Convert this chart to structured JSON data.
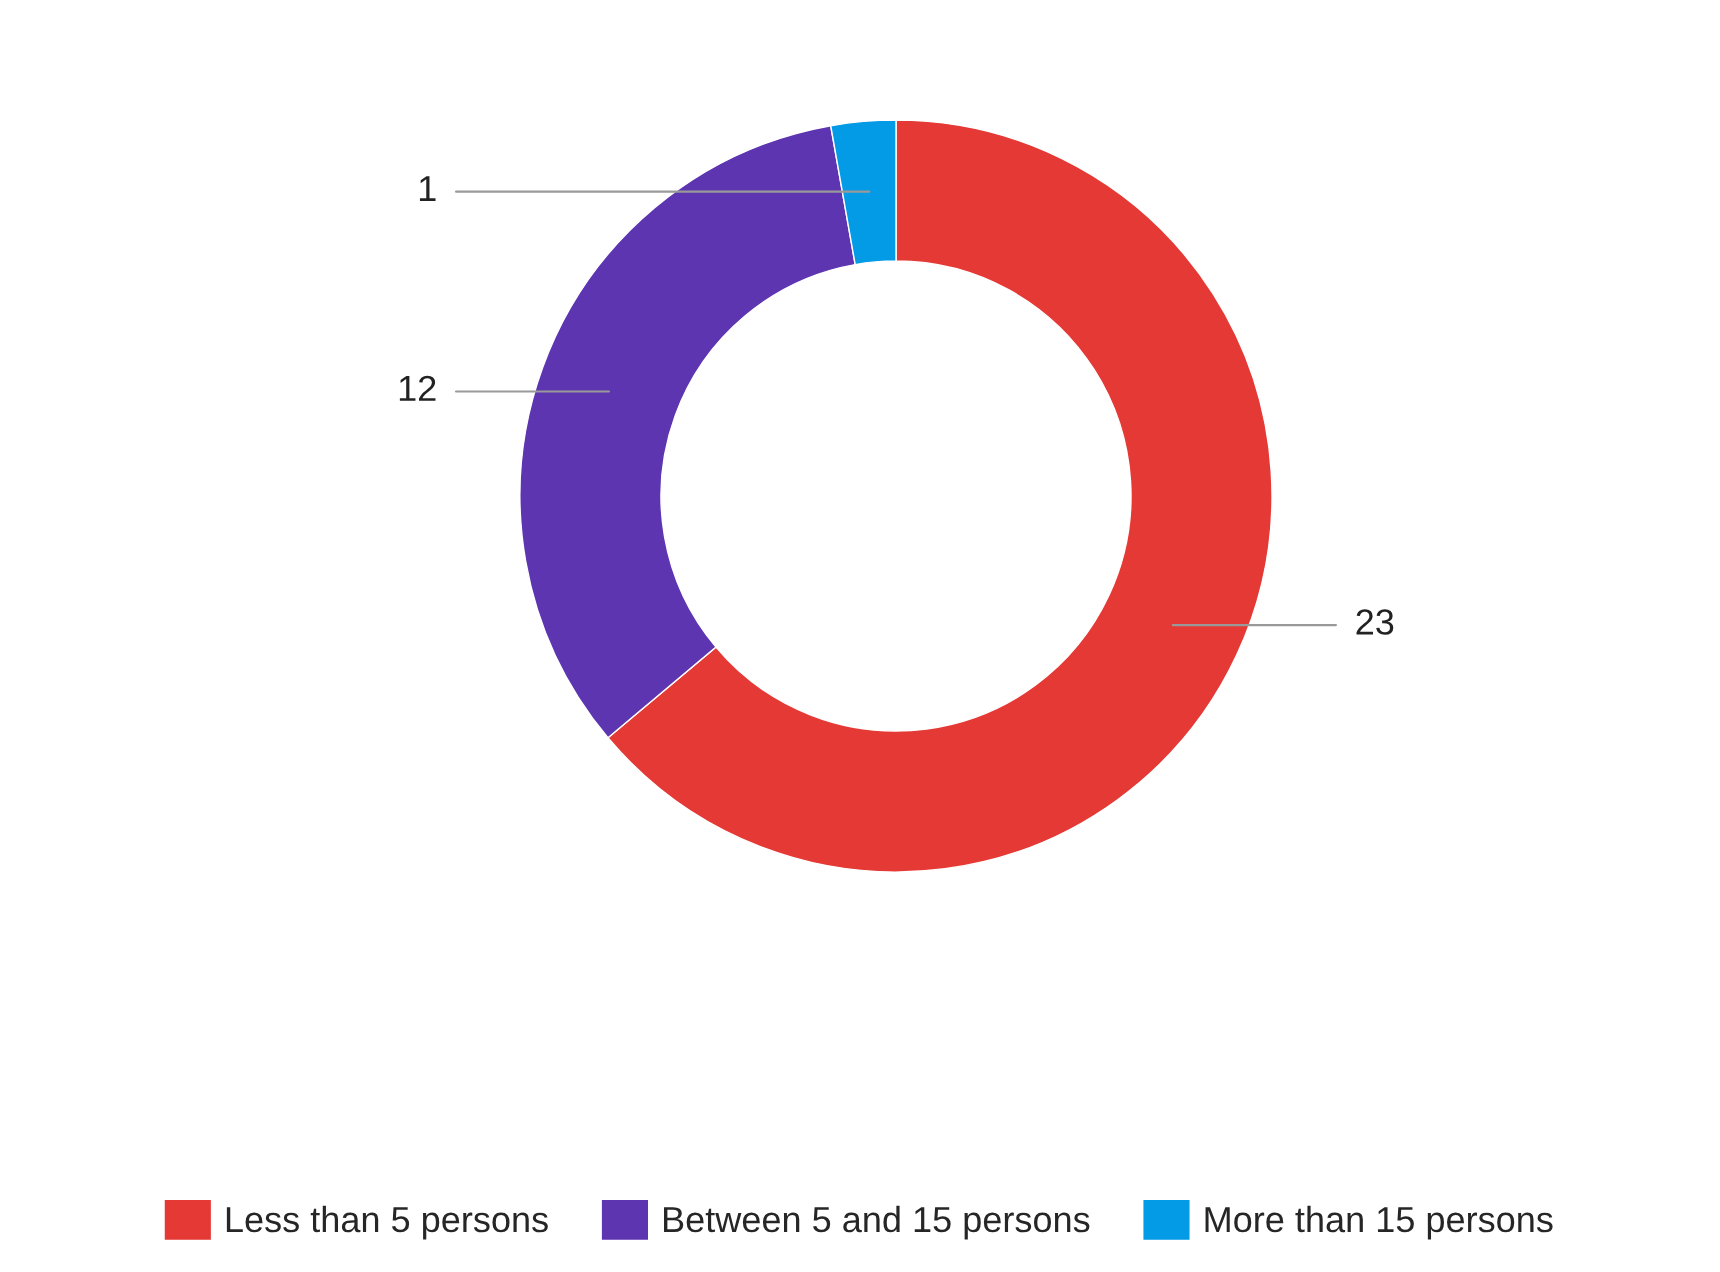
{
  "chart_data": {
    "type": "donut",
    "categories": [
      "Less than 5 persons",
      "Between 5 and 15 persons",
      "More than 15 persons"
    ],
    "values": [
      23,
      12,
      1
    ],
    "colors": [
      "#e53935",
      "#5e35b1",
      "#039be5"
    ],
    "data_labels": true,
    "legend": "bottom"
  }
}
